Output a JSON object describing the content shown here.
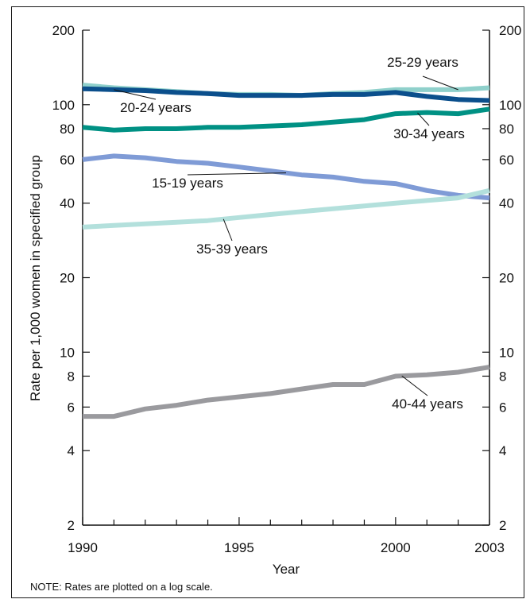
{
  "chart_data": {
    "type": "line",
    "xlabel": "Year",
    "ylabel": "Rate per 1,000 women in specified group",
    "y_scale": "log",
    "ylim": [
      2,
      200
    ],
    "xlim": [
      1990,
      2003
    ],
    "x_ticks": [
      "1990",
      "1995",
      "2000",
      "2003"
    ],
    "y_ticks": [
      "2",
      "4",
      "6",
      "8",
      "10",
      "20",
      "40",
      "60",
      "80",
      "100",
      "200"
    ],
    "grid": false,
    "x": [
      1990,
      1991,
      1992,
      1993,
      1994,
      1995,
      1996,
      1997,
      1998,
      1999,
      2000,
      2001,
      2002,
      2003
    ],
    "series": [
      {
        "name": "25-29 years",
        "color": "#8fd0cb",
        "values": [
          120,
          117,
          115,
          113,
          111,
          110,
          110,
          109,
          111,
          112,
          115,
          115,
          115,
          117
        ]
      },
      {
        "name": "20-24 years",
        "color": "#0b4f8c",
        "values": [
          116,
          115,
          114,
          112,
          111,
          109,
          109,
          109,
          110,
          110,
          112,
          108,
          105,
          104
        ]
      },
      {
        "name": "30-34 years",
        "color": "#009184",
        "values": [
          81,
          79,
          80,
          80,
          81,
          81,
          82,
          83,
          85,
          87,
          92,
          93,
          92,
          96
        ]
      },
      {
        "name": "15-19 years",
        "color": "#7f9bd6",
        "values": [
          60,
          62,
          61,
          59,
          58,
          56,
          54,
          52,
          51,
          49,
          48,
          45,
          43,
          42
        ]
      },
      {
        "name": "35-39 years",
        "color": "#b3e0dc",
        "values": [
          32,
          32.5,
          33,
          33.5,
          34,
          35,
          36,
          37,
          38,
          39,
          40,
          41,
          42,
          45
        ]
      },
      {
        "name": "40-44 years",
        "color": "#9a9a9e",
        "values": [
          5.5,
          5.5,
          5.9,
          6.1,
          6.4,
          6.6,
          6.8,
          7.1,
          7.4,
          7.4,
          8.0,
          8.1,
          8.3,
          8.7
        ]
      }
    ],
    "note": "NOTE:  Rates are plotted on a log scale."
  }
}
